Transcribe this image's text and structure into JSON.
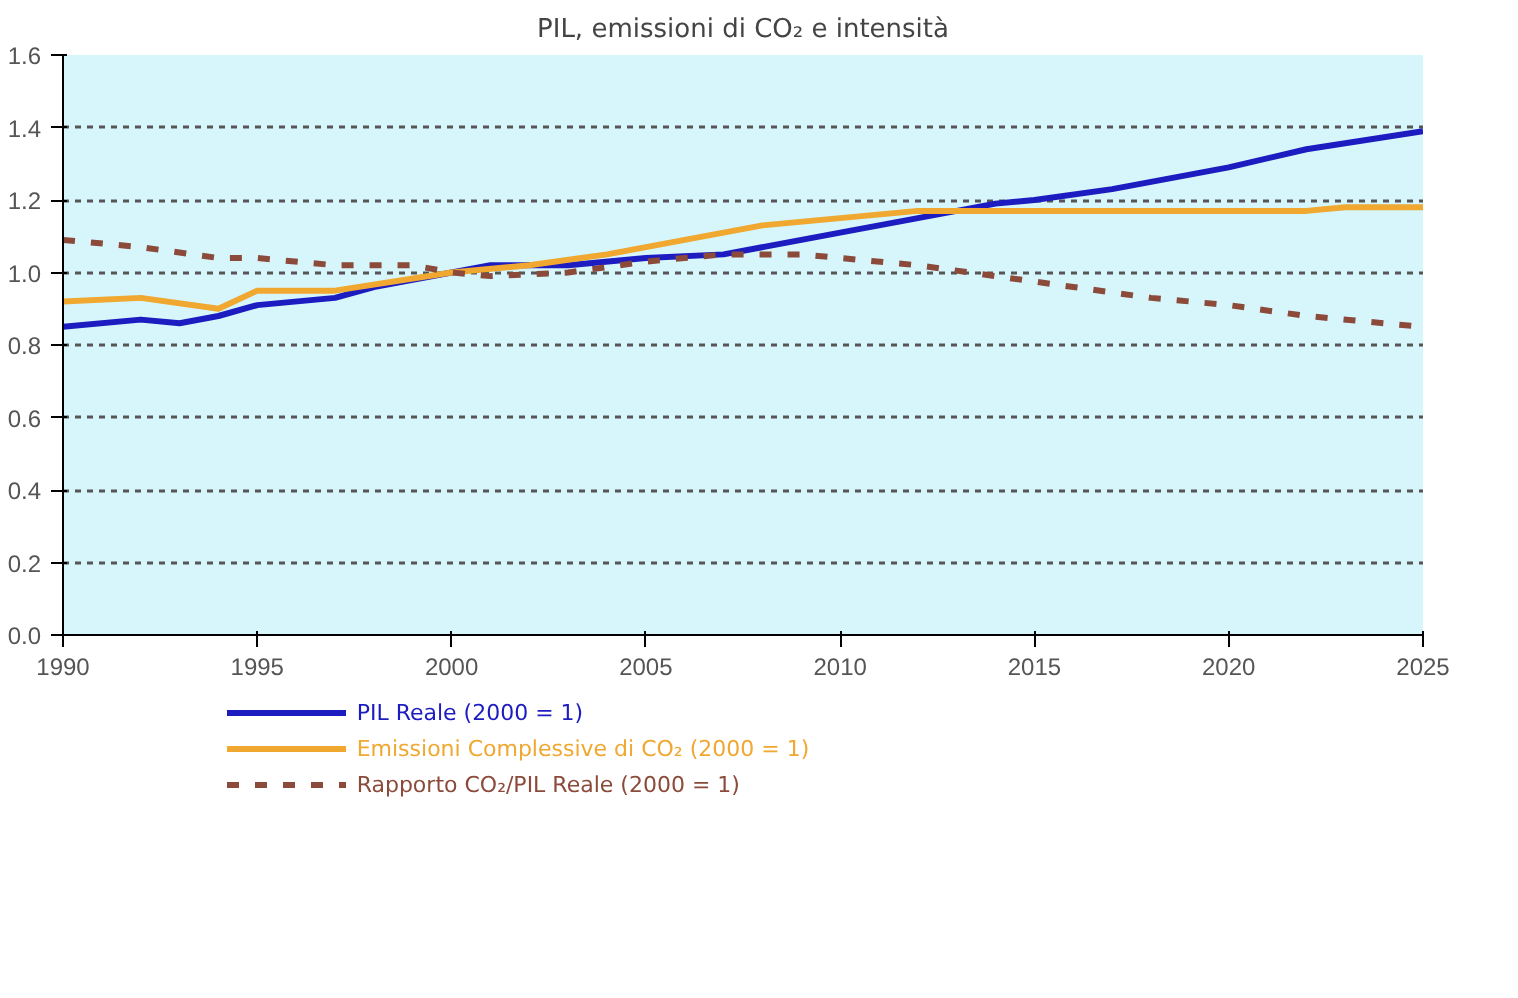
{
  "chart_data": {
    "type": "line",
    "title": "PIL, emissioni di CO₂ e intensità",
    "xlim": [
      1990,
      2025
    ],
    "xticks": [
      1990,
      1995,
      2000,
      2005,
      2010,
      2015,
      2020,
      2025
    ],
    "ylim": [
      0,
      1.6
    ],
    "yticks": [
      {
        "value": 0,
        "label": "0.0"
      },
      0.2,
      0.4,
      0.6,
      0.8,
      {
        "value": 1,
        "label": "1.0"
      },
      1.2,
      1.4,
      1.6
    ],
    "grid": "y",
    "legend": "bottom",
    "series": [
      {
        "name": "PIL Reale (2000 = 1)",
        "color": "#1c1cc0",
        "line_style": "solid",
        "x": [
          1990,
          1992,
          1993,
          1994,
          1995,
          1997,
          1998,
          2000,
          2001,
          2003,
          2005,
          2007,
          2010,
          2012,
          2014,
          2015,
          2017,
          2020,
          2022,
          2025
        ],
        "values": [
          0.85,
          0.87,
          0.86,
          0.88,
          0.91,
          0.93,
          0.96,
          1.0,
          1.02,
          1.02,
          1.04,
          1.05,
          1.11,
          1.15,
          1.19,
          1.2,
          1.23,
          1.29,
          1.34,
          1.39
        ]
      },
      {
        "name": "Emissioni Complessive di CO₂ (2000 = 1)",
        "color": "#f0a830",
        "line_style": "solid",
        "x": [
          1990,
          1992,
          1994,
          1995,
          1997,
          2000,
          2002,
          2004,
          2006,
          2008,
          2010,
          2012,
          2014,
          2020,
          2022,
          2023,
          2025
        ],
        "values": [
          0.92,
          0.93,
          0.9,
          0.95,
          0.95,
          1.0,
          1.02,
          1.05,
          1.09,
          1.13,
          1.15,
          1.17,
          1.17,
          1.17,
          1.17,
          1.18,
          1.18
        ]
      },
      {
        "name": "Rapporto CO₂/PIL Reale (2000 = 1)",
        "color": "#8b4a3a",
        "line_style": "dashed",
        "x": [
          1990,
          1992,
          1994,
          1995,
          1997,
          1999,
          2000,
          2001,
          2003,
          2005,
          2007,
          2009,
          2012,
          2014,
          2016,
          2018,
          2020,
          2022,
          2025
        ],
        "values": [
          1.09,
          1.07,
          1.04,
          1.04,
          1.02,
          1.02,
          1.0,
          0.99,
          1.0,
          1.03,
          1.05,
          1.05,
          1.02,
          0.99,
          0.96,
          0.93,
          0.91,
          0.88,
          0.85
        ]
      }
    ]
  }
}
